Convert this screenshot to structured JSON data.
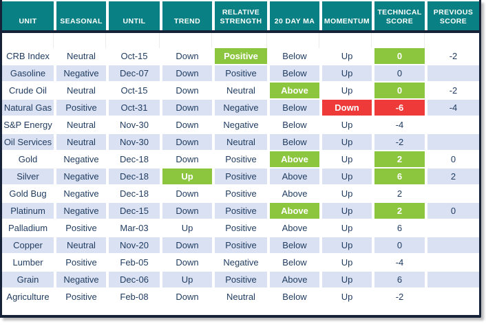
{
  "colors": {
    "header_bg": "#088084",
    "border_dark": "#152238",
    "stripe": "#D9E1F2",
    "text": "#1E3A5F",
    "green": "#8CC63F",
    "red": "#EF3A3A"
  },
  "header": {
    "keys": [
      "unit",
      "seasonal",
      "until",
      "trend",
      "relative_strength",
      "ma20",
      "momentum",
      "technical_score",
      "previous_score"
    ],
    "columns": [
      "UNIT",
      "SEASONAL",
      "UNTIL",
      "TREND",
      "RELATIVE STRENGTH",
      "20 DAY MA",
      "MOMENTUM",
      "TECHNICAL SCORE",
      "PREVIOUS SCORE"
    ]
  },
  "rows": [
    {
      "cells": [
        {
          "t": "CRB Index"
        },
        {
          "t": "Neutral"
        },
        {
          "t": "Oct-15"
        },
        {
          "t": "Down"
        },
        {
          "t": "Positive",
          "hl": "green"
        },
        {
          "t": "Below"
        },
        {
          "t": "Up"
        },
        {
          "t": "0",
          "hl": "green"
        },
        {
          "t": "-2"
        }
      ]
    },
    {
      "cells": [
        {
          "t": "Gasoline"
        },
        {
          "t": "Negative"
        },
        {
          "t": "Dec-07"
        },
        {
          "t": "Down"
        },
        {
          "t": "Positive"
        },
        {
          "t": "Below"
        },
        {
          "t": "Up"
        },
        {
          "t": "0"
        },
        {
          "t": ""
        }
      ]
    },
    {
      "cells": [
        {
          "t": "Crude Oil"
        },
        {
          "t": "Neutral"
        },
        {
          "t": "Oct-15"
        },
        {
          "t": "Down"
        },
        {
          "t": "Neutral"
        },
        {
          "t": "Above",
          "hl": "green"
        },
        {
          "t": "Up"
        },
        {
          "t": "0",
          "hl": "green"
        },
        {
          "t": "-2"
        }
      ]
    },
    {
      "cells": [
        {
          "t": "Natural Gas"
        },
        {
          "t": "Positive"
        },
        {
          "t": "Oct-31"
        },
        {
          "t": "Down"
        },
        {
          "t": "Negative"
        },
        {
          "t": "Below"
        },
        {
          "t": "Down",
          "hl": "red"
        },
        {
          "t": "-6",
          "hl": "red"
        },
        {
          "t": "-4"
        }
      ]
    },
    {
      "cells": [
        {
          "t": "S&P Energy"
        },
        {
          "t": "Neutral"
        },
        {
          "t": "Nov-30"
        },
        {
          "t": "Down"
        },
        {
          "t": "Negative"
        },
        {
          "t": "Below"
        },
        {
          "t": "Up"
        },
        {
          "t": "-4"
        },
        {
          "t": ""
        }
      ]
    },
    {
      "cells": [
        {
          "t": "Oil Services"
        },
        {
          "t": "Neutral"
        },
        {
          "t": "Nov-30"
        },
        {
          "t": "Down"
        },
        {
          "t": "Neutral"
        },
        {
          "t": "Below"
        },
        {
          "t": "Up"
        },
        {
          "t": "-2"
        },
        {
          "t": ""
        }
      ]
    },
    {
      "cells": [
        {
          "t": "Gold"
        },
        {
          "t": "Negative"
        },
        {
          "t": "Dec-18"
        },
        {
          "t": "Down"
        },
        {
          "t": "Positive"
        },
        {
          "t": "Above",
          "hl": "green"
        },
        {
          "t": "Up"
        },
        {
          "t": "2",
          "hl": "green"
        },
        {
          "t": "0"
        }
      ]
    },
    {
      "cells": [
        {
          "t": "Silver"
        },
        {
          "t": "Negative"
        },
        {
          "t": "Dec-18"
        },
        {
          "t": "Up",
          "hl": "green"
        },
        {
          "t": "Positive"
        },
        {
          "t": "Above"
        },
        {
          "t": "Up"
        },
        {
          "t": "6",
          "hl": "green"
        },
        {
          "t": "2"
        }
      ]
    },
    {
      "cells": [
        {
          "t": "Gold Bug"
        },
        {
          "t": "Negative"
        },
        {
          "t": "Dec-18"
        },
        {
          "t": "Down"
        },
        {
          "t": "Positive"
        },
        {
          "t": "Above"
        },
        {
          "t": "Up"
        },
        {
          "t": "2"
        },
        {
          "t": ""
        }
      ]
    },
    {
      "cells": [
        {
          "t": "Platinum"
        },
        {
          "t": "Negative"
        },
        {
          "t": "Dec-15"
        },
        {
          "t": "Down"
        },
        {
          "t": "Positive"
        },
        {
          "t": "Above",
          "hl": "green"
        },
        {
          "t": "Up"
        },
        {
          "t": "2",
          "hl": "green"
        },
        {
          "t": "0"
        }
      ]
    },
    {
      "cells": [
        {
          "t": "Palladium"
        },
        {
          "t": "Positive"
        },
        {
          "t": "Mar-03"
        },
        {
          "t": "Up"
        },
        {
          "t": "Positive"
        },
        {
          "t": "Above"
        },
        {
          "t": "Up"
        },
        {
          "t": "6"
        },
        {
          "t": ""
        }
      ]
    },
    {
      "cells": [
        {
          "t": "Copper"
        },
        {
          "t": "Neutral"
        },
        {
          "t": "Nov-20"
        },
        {
          "t": "Down"
        },
        {
          "t": "Positive"
        },
        {
          "t": "Below"
        },
        {
          "t": "Up"
        },
        {
          "t": "0"
        },
        {
          "t": ""
        }
      ]
    },
    {
      "cells": [
        {
          "t": "Lumber"
        },
        {
          "t": "Positive"
        },
        {
          "t": "Feb-05"
        },
        {
          "t": "Down"
        },
        {
          "t": "Negative"
        },
        {
          "t": "Below"
        },
        {
          "t": "Up"
        },
        {
          "t": "-4"
        },
        {
          "t": ""
        }
      ]
    },
    {
      "cells": [
        {
          "t": "Grain"
        },
        {
          "t": "Negative"
        },
        {
          "t": "Dec-06"
        },
        {
          "t": "Up"
        },
        {
          "t": "Positive"
        },
        {
          "t": "Above"
        },
        {
          "t": "Up"
        },
        {
          "t": "6"
        },
        {
          "t": ""
        }
      ]
    },
    {
      "cells": [
        {
          "t": "Agriculture"
        },
        {
          "t": "Positive"
        },
        {
          "t": "Feb-08"
        },
        {
          "t": "Down"
        },
        {
          "t": "Neutral"
        },
        {
          "t": "Below"
        },
        {
          "t": "Up"
        },
        {
          "t": "-2"
        },
        {
          "t": ""
        }
      ]
    }
  ]
}
